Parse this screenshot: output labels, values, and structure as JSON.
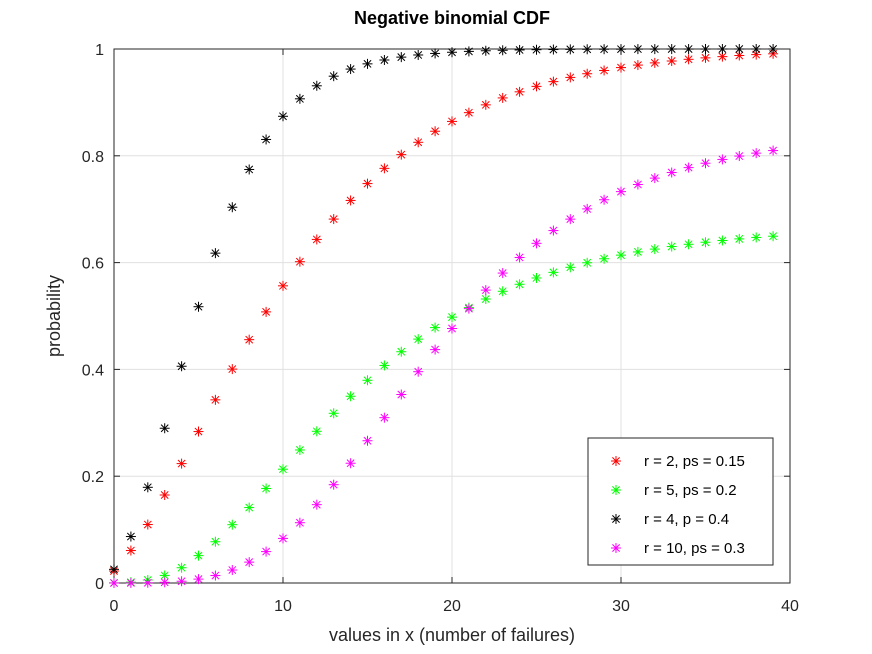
{
  "chart_data": {
    "type": "scatter",
    "title": "Negative binomial CDF",
    "xlabel": "values in x (number of failures)",
    "ylabel": "probability",
    "xlim": [
      0,
      40
    ],
    "ylim": [
      0,
      1
    ],
    "xticks": [
      0,
      10,
      20,
      30,
      40
    ],
    "xtick_labels": [
      "0",
      "10",
      "20",
      "30",
      "40"
    ],
    "yticks": [
      0,
      0.2,
      0.4,
      0.6,
      0.8,
      1
    ],
    "ytick_labels": [
      "0",
      "0.2",
      "0.4",
      "0.6",
      "0.8",
      "1"
    ],
    "grid": true,
    "legend_position": "bottom-right",
    "marker": "*",
    "x": [
      0,
      1,
      2,
      3,
      4,
      5,
      6,
      7,
      8,
      9,
      10,
      11,
      12,
      13,
      14,
      15,
      16,
      17,
      18,
      19,
      20,
      21,
      22,
      23,
      24,
      25,
      26,
      27,
      28,
      29,
      30,
      31,
      32,
      33,
      34,
      35,
      36,
      37,
      38,
      39
    ],
    "series": [
      {
        "name": "r = 2, ps = 0.15",
        "color": "#ff0000",
        "values": [
          0.0225,
          0.0608,
          0.1095,
          0.1648,
          0.2236,
          0.2836,
          0.343,
          0.4006,
          0.4557,
          0.5077,
          0.5565,
          0.6017,
          0.6434,
          0.6815,
          0.7164,
          0.748,
          0.7765,
          0.8022,
          0.8253,
          0.846,
          0.8644,
          0.8808,
          0.8954,
          0.9084,
          0.9198,
          0.93,
          0.9389,
          0.9468,
          0.9537,
          0.9598,
          0.9652,
          0.9699,
          0.974,
          0.9775,
          0.9807,
          0.9834,
          0.9857,
          0.9878,
          0.9895,
          0.991
        ]
      },
      {
        "name": "r = 5, ps = 0.2",
        "color": "#00ff00",
        "values": [
          0.0003,
          0.0016,
          0.0056,
          0.0142,
          0.0286,
          0.0513,
          0.0773,
          0.1092,
          0.1413,
          0.177,
          0.2131,
          0.2491,
          0.2841,
          0.3178,
          0.3497,
          0.3796,
          0.4074,
          0.4331,
          0.4567,
          0.4783,
          0.4979,
          0.5157,
          0.5318,
          0.5463,
          0.5594,
          0.5712,
          0.5817,
          0.5912,
          0.5997,
          0.6072,
          0.614,
          0.62,
          0.6253,
          0.6301,
          0.6343,
          0.6381,
          0.6414,
          0.6444,
          0.6471,
          0.6494
        ]
      },
      {
        "name": "r = 4, p = 0.4",
        "color": "#000000",
        "values": [
          0.0256,
          0.087,
          0.1792,
          0.2898,
          0.4059,
          0.5174,
          0.6177,
          0.7037,
          0.7744,
          0.8306,
          0.874,
          0.9067,
          0.9311,
          0.9491,
          0.9624,
          0.9722,
          0.9794,
          0.9848,
          0.9888,
          0.9917,
          0.9939,
          0.9955,
          0.9967,
          0.9976,
          0.9982,
          0.9987,
          0.999,
          0.9993,
          0.9995,
          0.9996,
          0.9997,
          0.9998,
          0.9998,
          0.9999,
          0.9999,
          0.9999,
          1.0,
          1.0,
          1.0,
          1.0
        ]
      },
      {
        "name": "r = 10, ps = 0.3",
        "color": "#ff00ff",
        "values": [
          0.0,
          0.0001,
          0.0004,
          0.0013,
          0.0033,
          0.0073,
          0.014,
          0.0243,
          0.0391,
          0.0588,
          0.0835,
          0.1129,
          0.1467,
          0.1841,
          0.2243,
          0.2664,
          0.3096,
          0.353,
          0.3957,
          0.4371,
          0.4766,
          0.5138,
          0.5485,
          0.5804,
          0.6096,
          0.6361,
          0.66,
          0.6814,
          0.7006,
          0.7177,
          0.7329,
          0.7463,
          0.7582,
          0.7687,
          0.7779,
          0.7861,
          0.7932,
          0.7995,
          0.805,
          0.8098
        ]
      }
    ]
  }
}
